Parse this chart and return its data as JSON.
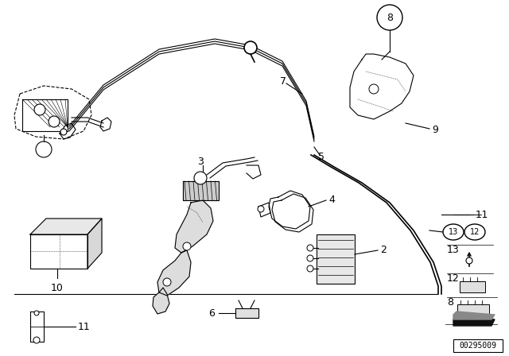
{
  "bg_color": "#ffffff",
  "line_color": "#000000",
  "fig_width": 6.4,
  "fig_height": 4.48,
  "watermark": "00295009",
  "cable_color": "#111111",
  "dot_color": "#888888"
}
